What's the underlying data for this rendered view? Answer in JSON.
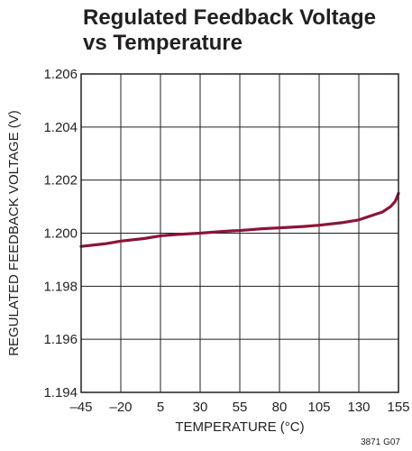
{
  "chart_data": {
    "type": "line",
    "title_lines": [
      "Regulated Feedback Voltage",
      "vs Temperature"
    ],
    "xlabel": "TEMPERATURE (°C)",
    "ylabel": "REGULATED FEEDBACK VOLTAGE (V)",
    "xlim": [
      -45,
      155
    ],
    "ylim": [
      1.194,
      1.206
    ],
    "x_ticks": [
      -45,
      -20,
      5,
      30,
      55,
      80,
      105,
      130,
      155
    ],
    "x_tick_labels": [
      "–45",
      "–20",
      "5",
      "30",
      "55",
      "80",
      "105",
      "130",
      "155"
    ],
    "y_ticks": [
      1.194,
      1.196,
      1.198,
      1.2,
      1.202,
      1.204,
      1.206
    ],
    "y_tick_labels": [
      "1.194",
      "1.196",
      "1.198",
      "1.200",
      "1.202",
      "1.204",
      "1.206"
    ],
    "grid": true,
    "line_color": "#8b1538",
    "series": [
      {
        "x": [
          -45,
          -30,
          -20,
          -5,
          5,
          15,
          30,
          45,
          55,
          70,
          80,
          95,
          105,
          120,
          130,
          140,
          145,
          150,
          153,
          155
        ],
        "y": [
          1.1995,
          1.1996,
          1.1997,
          1.1998,
          1.1999,
          1.19995,
          1.2,
          1.20007,
          1.2001,
          1.20017,
          1.2002,
          1.20025,
          1.2003,
          1.2004,
          1.2005,
          1.2007,
          1.2008,
          1.201,
          1.2012,
          1.2015
        ]
      }
    ],
    "figure_code": "3871 G07"
  }
}
